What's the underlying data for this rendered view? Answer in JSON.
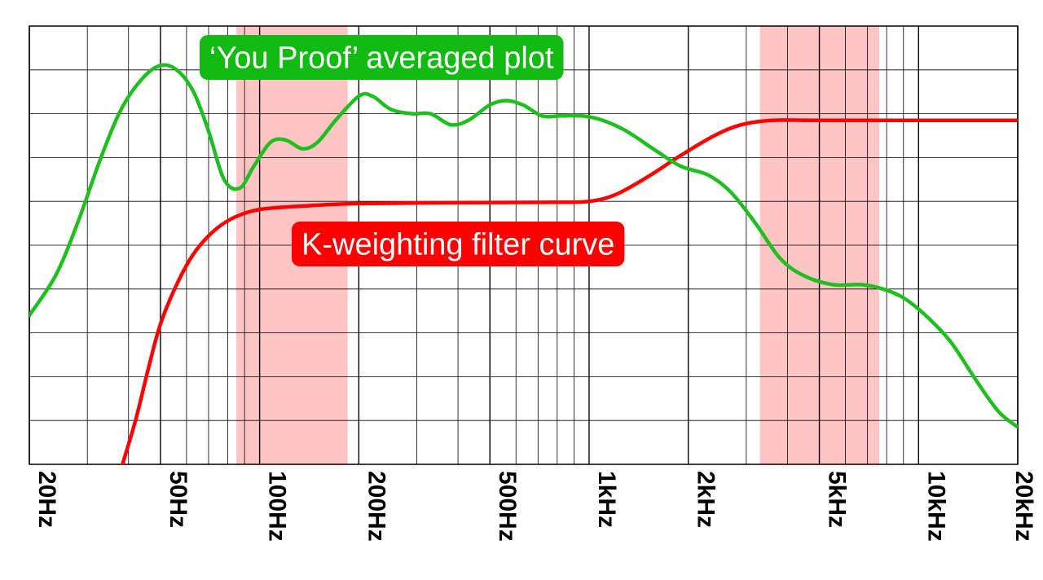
{
  "chart_data": {
    "type": "line",
    "xscale": "log",
    "xlim": [
      20,
      20000
    ],
    "ylim": [
      0,
      10
    ],
    "grid": true,
    "x_ticks": [
      {
        "value": 20,
        "label": "20Hz"
      },
      {
        "value": 50,
        "label": "50Hz"
      },
      {
        "value": 100,
        "label": "100Hz"
      },
      {
        "value": 200,
        "label": "200Hz"
      },
      {
        "value": 500,
        "label": "500Hz"
      },
      {
        "value": 1000,
        "label": "1kHz"
      },
      {
        "value": 2000,
        "label": "2kHz"
      },
      {
        "value": 5000,
        "label": "5kHz"
      },
      {
        "value": 10000,
        "label": "10kHz"
      },
      {
        "value": 20000,
        "label": "20kHz"
      }
    ],
    "highlight_bands": [
      {
        "from": 85,
        "to": 185,
        "color": "#ffc4c4"
      },
      {
        "from": 3300,
        "to": 7600,
        "color": "#ffc4c4"
      }
    ],
    "series": [
      {
        "name": "'You Proof' averaged plot",
        "color": "#1fbf1f",
        "points": [
          [
            20,
            3.4
          ],
          [
            24,
            4.3
          ],
          [
            28,
            5.5
          ],
          [
            33,
            7.0
          ],
          [
            38,
            8.1
          ],
          [
            44,
            8.8
          ],
          [
            50,
            9.1
          ],
          [
            56,
            9.0
          ],
          [
            63,
            8.5
          ],
          [
            70,
            7.6
          ],
          [
            78,
            6.5
          ],
          [
            87,
            6.3
          ],
          [
            96,
            6.8
          ],
          [
            108,
            7.35
          ],
          [
            120,
            7.4
          ],
          [
            135,
            7.2
          ],
          [
            150,
            7.35
          ],
          [
            170,
            7.85
          ],
          [
            200,
            8.4
          ],
          [
            220,
            8.4
          ],
          [
            250,
            8.1
          ],
          [
            290,
            8.0
          ],
          [
            330,
            8.0
          ],
          [
            380,
            7.75
          ],
          [
            430,
            7.85
          ],
          [
            500,
            8.2
          ],
          [
            560,
            8.3
          ],
          [
            630,
            8.2
          ],
          [
            720,
            7.95
          ],
          [
            820,
            7.95
          ],
          [
            950,
            7.95
          ],
          [
            1100,
            7.85
          ],
          [
            1300,
            7.6
          ],
          [
            1600,
            7.15
          ],
          [
            1900,
            6.8
          ],
          [
            2300,
            6.6
          ],
          [
            2700,
            6.2
          ],
          [
            3200,
            5.5
          ],
          [
            3800,
            4.7
          ],
          [
            4500,
            4.3
          ],
          [
            5500,
            4.1
          ],
          [
            6700,
            4.1
          ],
          [
            7800,
            4.0
          ],
          [
            9000,
            3.8
          ],
          [
            10500,
            3.4
          ],
          [
            12500,
            2.8
          ],
          [
            15000,
            1.9
          ],
          [
            17500,
            1.2
          ],
          [
            20000,
            0.85
          ]
        ]
      },
      {
        "name": "K-weighting filter curve",
        "color": "#ff0000",
        "points": [
          [
            38,
            -0.1
          ],
          [
            42,
            1.0
          ],
          [
            46,
            2.2
          ],
          [
            50,
            3.2
          ],
          [
            56,
            4.1
          ],
          [
            63,
            4.8
          ],
          [
            72,
            5.3
          ],
          [
            82,
            5.6
          ],
          [
            95,
            5.78
          ],
          [
            110,
            5.85
          ],
          [
            140,
            5.9
          ],
          [
            200,
            5.95
          ],
          [
            400,
            5.97
          ],
          [
            800,
            5.98
          ],
          [
            1000,
            6.0
          ],
          [
            1200,
            6.15
          ],
          [
            1500,
            6.55
          ],
          [
            1900,
            7.05
          ],
          [
            2400,
            7.5
          ],
          [
            2900,
            7.75
          ],
          [
            3600,
            7.85
          ],
          [
            5000,
            7.85
          ],
          [
            10000,
            7.85
          ],
          [
            20000,
            7.85
          ]
        ]
      }
    ],
    "annotations": [
      {
        "text": "‘You Proof’ averaged plot",
        "color": "#11bb11",
        "series": 0
      },
      {
        "text": "K-weighting filter curve",
        "color": "#ff0000",
        "series": 1
      }
    ]
  }
}
